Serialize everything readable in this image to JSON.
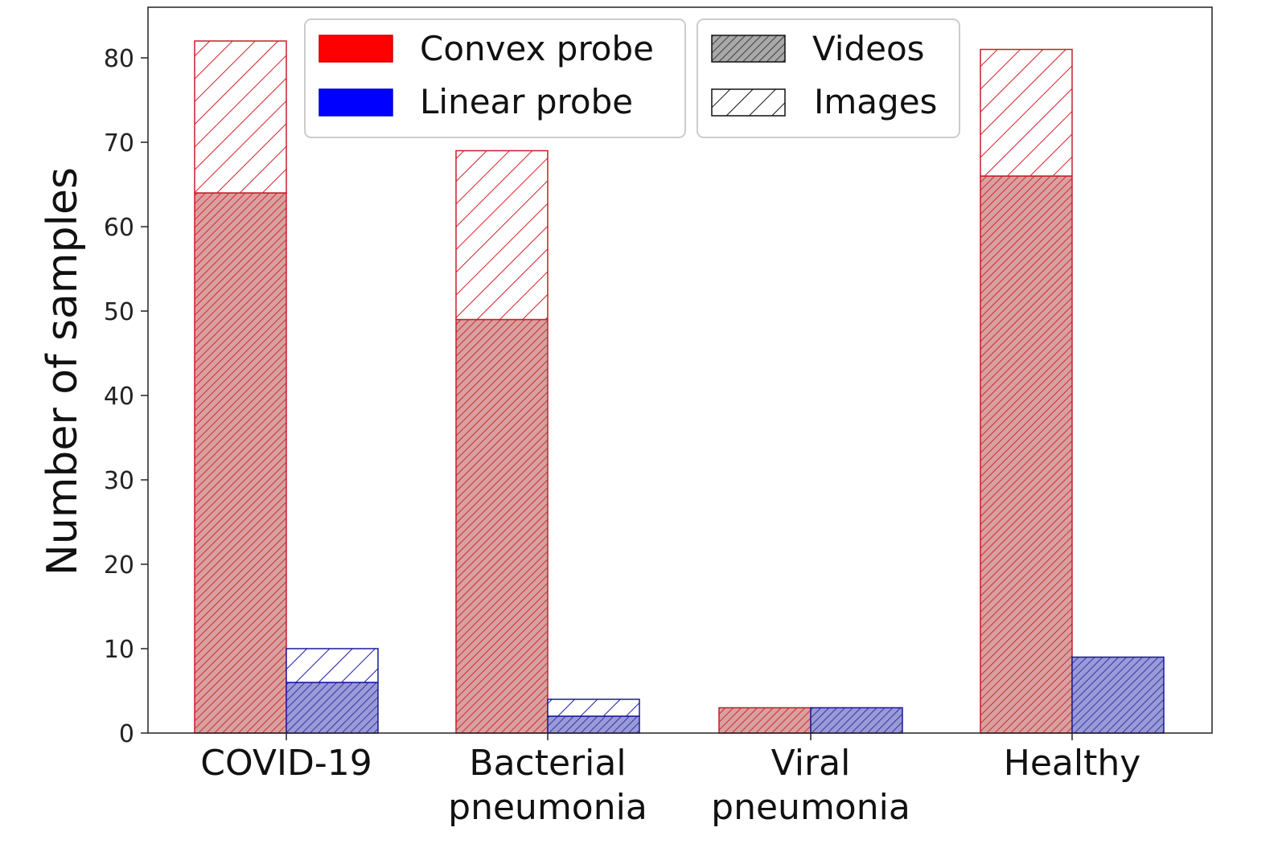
{
  "chart_data": {
    "type": "bar",
    "stacked": true,
    "categories": [
      [
        "COVID-19"
      ],
      [
        "Bacterial",
        "pneumonia"
      ],
      [
        "Viral",
        "pneumonia"
      ],
      [
        "Healthy"
      ]
    ],
    "series": [
      {
        "name": "Convex probe",
        "color": "#ff0000",
        "videos": [
          64,
          49,
          3,
          66
        ],
        "images": [
          18,
          20,
          0,
          15
        ]
      },
      {
        "name": "Linear probe",
        "color": "#0000ff",
        "videos": [
          6,
          2,
          3,
          9
        ],
        "images": [
          4,
          2,
          0,
          0
        ]
      }
    ],
    "hatch_legend": [
      {
        "name": "Videos",
        "hatch": "dense"
      },
      {
        "name": "Images",
        "hatch": "sparse"
      }
    ],
    "title": "",
    "xlabel": "",
    "ylabel": "Number of samples",
    "ylim": [
      0,
      86
    ],
    "yticks": [
      0,
      10,
      20,
      30,
      40,
      50,
      60,
      70,
      80
    ],
    "grid": false,
    "legend_placement": "top-center"
  }
}
